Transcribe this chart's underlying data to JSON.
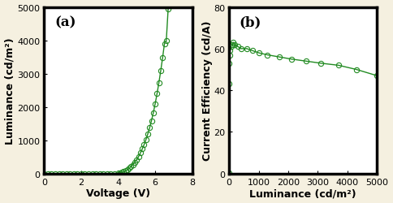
{
  "panel_a": {
    "label": "(a)",
    "xlabel": "Voltage (V)",
    "ylabel": "Luminance (cd/m²)",
    "xlim": [
      0,
      8
    ],
    "ylim": [
      0,
      5000
    ],
    "xticks": [
      0,
      2,
      4,
      6,
      8
    ],
    "yticks": [
      0,
      1000,
      2000,
      3000,
      4000,
      5000
    ],
    "voltage": [
      0.0,
      0.2,
      0.4,
      0.6,
      0.8,
      1.0,
      1.2,
      1.4,
      1.6,
      1.8,
      2.0,
      2.2,
      2.4,
      2.6,
      2.8,
      3.0,
      3.2,
      3.4,
      3.6,
      3.8,
      4.0,
      4.1,
      4.2,
      4.3,
      4.4,
      4.5,
      4.6,
      4.7,
      4.8,
      4.9,
      5.0,
      5.1,
      5.2,
      5.3,
      5.4,
      5.5,
      5.6,
      5.7,
      5.8,
      5.9,
      6.0,
      6.1,
      6.2,
      6.3,
      6.4,
      6.5,
      6.6,
      6.7
    ],
    "luminance": [
      0,
      0,
      0,
      0,
      0,
      0,
      0,
      0,
      0,
      0,
      0,
      0,
      0,
      0,
      0,
      0,
      0,
      0,
      0,
      5,
      15,
      25,
      40,
      60,
      85,
      120,
      160,
      210,
      270,
      340,
      420,
      510,
      620,
      740,
      870,
      1020,
      1190,
      1380,
      1590,
      1830,
      2100,
      2400,
      2730,
      3090,
      3480,
      3900,
      4000,
      4950
    ]
  },
  "panel_b": {
    "label": "(b)",
    "xlabel": "Luminance (cd/m²)",
    "ylabel": "Current Efficiency (cd/A)",
    "xlim": [
      0,
      5000
    ],
    "ylim": [
      0,
      80
    ],
    "xticks": [
      0,
      1000,
      2000,
      3000,
      4000,
      5000
    ],
    "yticks": [
      0,
      20,
      40,
      60,
      80
    ],
    "luminance": [
      1,
      5,
      10,
      20,
      40,
      70,
      100,
      150,
      200,
      300,
      400,
      600,
      800,
      1000,
      1300,
      1700,
      2100,
      2600,
      3100,
      3700,
      4300,
      5000
    ],
    "efficiency": [
      0.2,
      43,
      53,
      57,
      59,
      61,
      62,
      63,
      62,
      61,
      60,
      60,
      59,
      58,
      57,
      56,
      55,
      54,
      53,
      52,
      50,
      47
    ]
  },
  "line_color": "#228B22",
  "marker_color": "#228B22",
  "marker": "o",
  "markersize": 4.5,
  "linewidth": 1.0,
  "bg_color": "#f5f0e0",
  "plot_bg_color": "#ffffff",
  "border_color": "#000000",
  "spine_linewidth": 2.5,
  "label_fontsize": 9,
  "tick_fontsize": 8,
  "panel_label_fontsize": 12
}
